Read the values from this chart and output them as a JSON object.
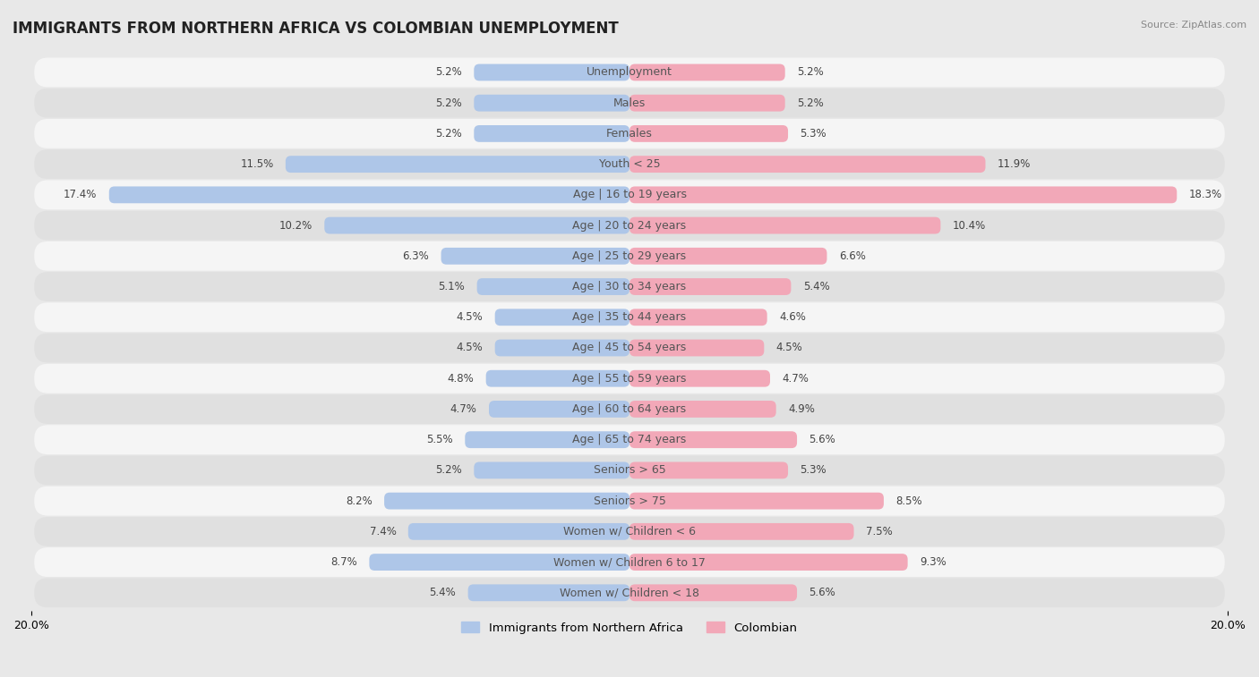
{
  "title": "IMMIGRANTS FROM NORTHERN AFRICA VS COLOMBIAN UNEMPLOYMENT",
  "source": "Source: ZipAtlas.com",
  "categories": [
    "Unemployment",
    "Males",
    "Females",
    "Youth < 25",
    "Age | 16 to 19 years",
    "Age | 20 to 24 years",
    "Age | 25 to 29 years",
    "Age | 30 to 34 years",
    "Age | 35 to 44 years",
    "Age | 45 to 54 years",
    "Age | 55 to 59 years",
    "Age | 60 to 64 years",
    "Age | 65 to 74 years",
    "Seniors > 65",
    "Seniors > 75",
    "Women w/ Children < 6",
    "Women w/ Children 6 to 17",
    "Women w/ Children < 18"
  ],
  "left_values": [
    5.2,
    5.2,
    5.2,
    11.5,
    17.4,
    10.2,
    6.3,
    5.1,
    4.5,
    4.5,
    4.8,
    4.7,
    5.5,
    5.2,
    8.2,
    7.4,
    8.7,
    5.4
  ],
  "right_values": [
    5.2,
    5.2,
    5.3,
    11.9,
    18.3,
    10.4,
    6.6,
    5.4,
    4.6,
    4.5,
    4.7,
    4.9,
    5.6,
    5.3,
    8.5,
    7.5,
    9.3,
    5.6
  ],
  "left_color": "#aec6e8",
  "right_color": "#f2a8b8",
  "left_label": "Immigrants from Northern Africa",
  "right_label": "Colombian",
  "xlim": 20.0,
  "bar_height": 0.55,
  "background_color": "#e8e8e8",
  "row_color_odd": "#f5f5f5",
  "row_color_even": "#e0e0e0",
  "title_fontsize": 12,
  "label_fontsize": 9,
  "value_fontsize": 8.5,
  "legend_fontsize": 9.5
}
